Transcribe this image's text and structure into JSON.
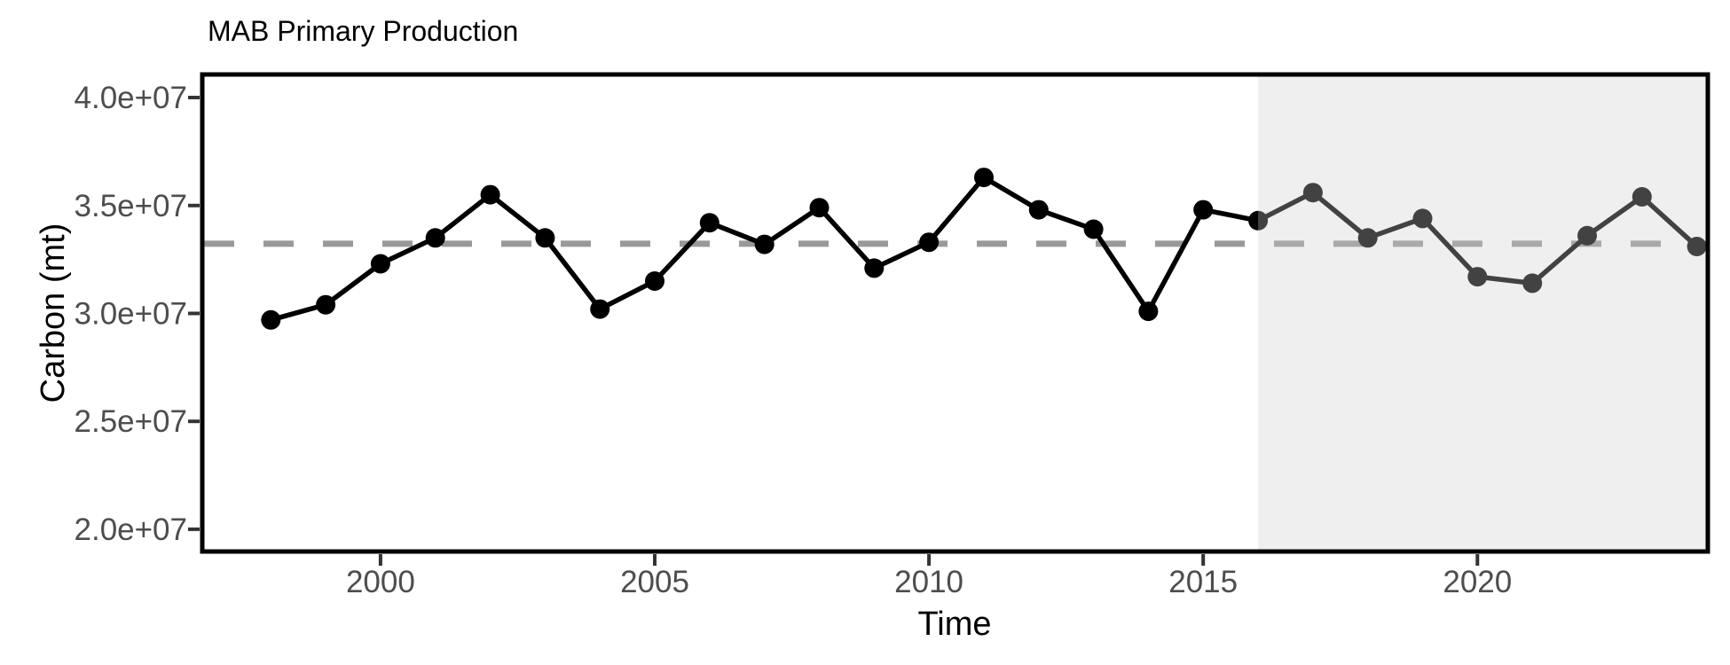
{
  "chart_data": {
    "type": "line",
    "title": "MAB Primary Production",
    "xlabel": "Time",
    "ylabel": "Carbon (mt)",
    "x": [
      1998,
      1999,
      2000,
      2001,
      2002,
      2003,
      2004,
      2005,
      2006,
      2007,
      2008,
      2009,
      2010,
      2011,
      2012,
      2013,
      2014,
      2015,
      2016,
      2017,
      2018,
      2019,
      2020,
      2021,
      2022,
      2023,
      2024
    ],
    "values": [
      29700000,
      30400000,
      32300000,
      33500000,
      35500000,
      33500000,
      30200000,
      31500000,
      34200000,
      33200000,
      34900000,
      32100000,
      33300000,
      36300000,
      34800000,
      33900000,
      30100000,
      34800000,
      34300000,
      35600000,
      33500000,
      34400000,
      31700000,
      31400000,
      33600000,
      35400000,
      33100000
    ],
    "mean_line": {
      "value": 33230000,
      "style": "dashed"
    },
    "shaded_region": {
      "x_start": 2016,
      "x_end": 2024.2
    },
    "x_ticks": [
      2000,
      2005,
      2010,
      2015,
      2020
    ],
    "x_tick_labels": [
      "2000",
      "2005",
      "2010",
      "2015",
      "2020"
    ],
    "y_ticks": [
      20000000,
      25000000,
      30000000,
      35000000,
      40000000
    ],
    "y_tick_labels": [
      "2.0e+07",
      "2.5e+07",
      "3.0e+07",
      "3.5e+07",
      "4.0e+07"
    ],
    "xlim": [
      1996.75,
      2024.2
    ],
    "ylim": [
      18970000,
      41070000
    ],
    "grid": false,
    "legend": "none"
  },
  "colors": {
    "background": "#ffffff",
    "line": "#000000",
    "point": "#000000",
    "mean_line": "#999999",
    "shade": "#cccccc",
    "panel_border": "#000000",
    "tick_mark": "#333333",
    "axis_text": "#4d4d4d",
    "title_text": "#000000"
  }
}
